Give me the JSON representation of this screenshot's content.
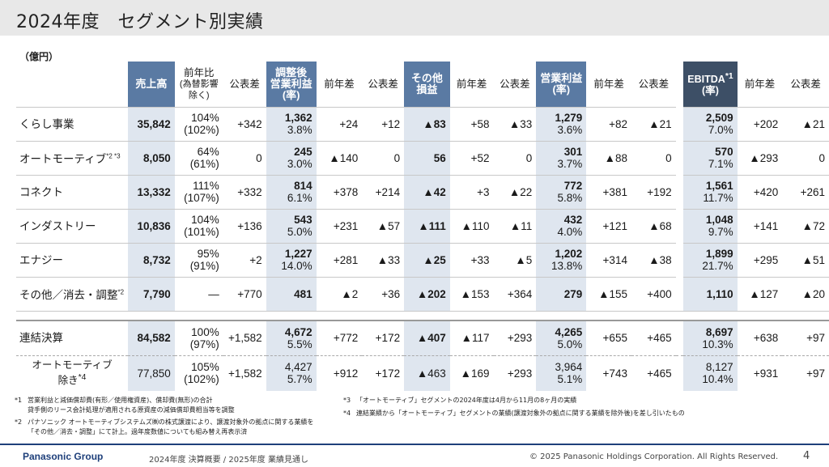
{
  "title": "2024年度　セグメント別実績",
  "unit": "（億円）",
  "headers": {
    "sales": "売上高",
    "yoy_ratio_1": "前年比",
    "yoy_ratio_2": "(為替影響",
    "yoy_ratio_3": "除く)",
    "vs_forecast": "公表差",
    "adj_op_1": "調整後",
    "adj_op_2": "営業利益",
    "adj_op_3": "(率)",
    "yoy_diff": "前年差",
    "other_1": "その他",
    "other_2": "損益",
    "op_1": "営業利益",
    "op_2": "(率)",
    "ebitda_1": "EBITDA",
    "ebitda_sup": "*1",
    "ebitda_2": "(率)"
  },
  "rows": [
    {
      "name": "くらし事業",
      "sup": "",
      "sales": "35,842",
      "yoy": "104%",
      "yoy_fx": "(102%)",
      "sales_fc": "+342",
      "adj": "1,362",
      "adj_rate": "3.8%",
      "adj_yoy": "+24",
      "adj_fc": "+12",
      "other": "▲83",
      "other_yoy": "+58",
      "other_fc": "▲33",
      "op": "1,279",
      "op_rate": "3.6%",
      "op_yoy": "+82",
      "op_fc": "▲21",
      "ebitda": "2,509",
      "ebitda_rate": "7.0%",
      "ebitda_yoy": "+202",
      "ebitda_fc": "▲21"
    },
    {
      "name": "オートモーティブ",
      "sup": "*2 *3",
      "sales": "8,050",
      "yoy": "64%",
      "yoy_fx": "(61%)",
      "sales_fc": "0",
      "adj": "245",
      "adj_rate": "3.0%",
      "adj_yoy": "▲140",
      "adj_fc": "0",
      "other": "56",
      "other_yoy": "+52",
      "other_fc": "0",
      "op": "301",
      "op_rate": "3.7%",
      "op_yoy": "▲88",
      "op_fc": "0",
      "ebitda": "570",
      "ebitda_rate": "7.1%",
      "ebitda_yoy": "▲293",
      "ebitda_fc": "0"
    },
    {
      "name": "コネクト",
      "sup": "",
      "sales": "13,332",
      "yoy": "111%",
      "yoy_fx": "(107%)",
      "sales_fc": "+332",
      "adj": "814",
      "adj_rate": "6.1%",
      "adj_yoy": "+378",
      "adj_fc": "+214",
      "other": "▲42",
      "other_yoy": "+3",
      "other_fc": "▲22",
      "op": "772",
      "op_rate": "5.8%",
      "op_yoy": "+381",
      "op_fc": "+192",
      "ebitda": "1,561",
      "ebitda_rate": "11.7%",
      "ebitda_yoy": "+420",
      "ebitda_fc": "+261"
    },
    {
      "name": "インダストリー",
      "sup": "",
      "sales": "10,836",
      "yoy": "104%",
      "yoy_fx": "(101%)",
      "sales_fc": "+136",
      "adj": "543",
      "adj_rate": "5.0%",
      "adj_yoy": "+231",
      "adj_fc": "▲57",
      "other": "▲111",
      "other_yoy": "▲110",
      "other_fc": "▲11",
      "op": "432",
      "op_rate": "4.0%",
      "op_yoy": "+121",
      "op_fc": "▲68",
      "ebitda": "1,048",
      "ebitda_rate": "9.7%",
      "ebitda_yoy": "+141",
      "ebitda_fc": "▲72"
    },
    {
      "name": "エナジー",
      "sup": "",
      "sales": "8,732",
      "yoy": "95%",
      "yoy_fx": "(91%)",
      "sales_fc": "+2",
      "adj": "1,227",
      "adj_rate": "14.0%",
      "adj_yoy": "+281",
      "adj_fc": "▲33",
      "other": "▲25",
      "other_yoy": "+33",
      "other_fc": "▲5",
      "op": "1,202",
      "op_rate": "13.8%",
      "op_yoy": "+314",
      "op_fc": "▲38",
      "ebitda": "1,899",
      "ebitda_rate": "21.7%",
      "ebitda_yoy": "+295",
      "ebitda_fc": "▲51"
    },
    {
      "name": "その他／消去・調整",
      "sup": "*2",
      "sales": "7,790",
      "yoy": "―",
      "yoy_fx": "",
      "sales_fc": "+770",
      "adj": "481",
      "adj_rate": "",
      "adj_yoy": "▲2",
      "adj_fc": "+36",
      "other": "▲202",
      "other_yoy": "▲153",
      "other_fc": "+364",
      "op": "279",
      "op_rate": "",
      "op_yoy": "▲155",
      "op_fc": "+400",
      "ebitda": "1,110",
      "ebitda_rate": "",
      "ebitda_yoy": "▲127",
      "ebitda_fc": "▲20"
    }
  ],
  "total": {
    "name": "連結決算",
    "sales": "84,582",
    "yoy": "100%",
    "yoy_fx": "(97%)",
    "sales_fc": "+1,582",
    "adj": "4,672",
    "adj_rate": "5.5%",
    "adj_yoy": "+772",
    "adj_fc": "+172",
    "other": "▲407",
    "other_yoy": "▲117",
    "other_fc": "+293",
    "op": "4,265",
    "op_rate": "5.0%",
    "op_yoy": "+655",
    "op_fc": "+465",
    "ebitda": "8,697",
    "ebitda_rate": "10.3%",
    "ebitda_yoy": "+638",
    "ebitda_fc": "+97"
  },
  "sub": {
    "name_1": "オートモーティブ",
    "name_2": "除き",
    "sup": "*4",
    "sales": "77,850",
    "yoy": "105%",
    "yoy_fx": "(102%)",
    "sales_fc": "+1,582",
    "adj": "4,427",
    "adj_rate": "5.7%",
    "adj_yoy": "+912",
    "adj_fc": "+172",
    "other": "▲463",
    "other_yoy": "▲169",
    "other_fc": "+293",
    "op": "3,964",
    "op_rate": "5.1%",
    "op_yoy": "+743",
    "op_fc": "+465",
    "ebitda": "8,127",
    "ebitda_rate": "10.4%",
    "ebitda_yoy": "+931",
    "ebitda_fc": "+97"
  },
  "notes": {
    "n1_mark": "*1",
    "n1_line1": "営業利益と減価償却費(有形／使用権資産)、償却費(無形)の合計",
    "n1_line2": "貸手側のリース会計処理が適用される原資産の減価償却費相当等を調整",
    "n2_mark": "*2",
    "n2_line1": "パナソニック オートモーティブシステムズ㈱の株式譲渡により、譲渡対象外の拠点に関する業績を",
    "n2_line2": "「その他／消去・調整」にて計上。過年度数値についても組み替え再表示済",
    "n3_mark": "*3",
    "n3_line1": "「オートモーティブ」セグメントの2024年度は4月から11月の8ヶ月の実績",
    "n4_mark": "*4",
    "n4_line1": "連結業績から「オートモーティブ」セグメントの業績(譲渡対象外の拠点に関する業績を除外後)を差し引いたもの"
  },
  "footer": {
    "logo": "Panasonic Group",
    "doc": "2024年度 決算概要 / 2025年度 業績見通し",
    "copyright": "© 2025 Panasonic Holdings Corporation. All Rights Reserved.",
    "page": "4"
  },
  "colors": {
    "header_blue": "#5a7aa3",
    "header_ebitda": "#3d4f66",
    "highlight_cell": "#dfe6ef",
    "footer_line": "#1e3f7a"
  }
}
